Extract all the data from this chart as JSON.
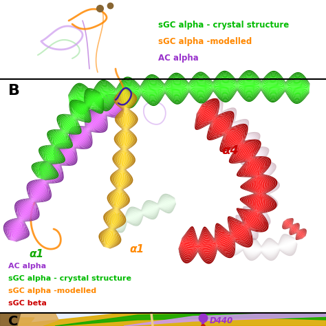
{
  "figure_width": 4.74,
  "figure_height": 4.74,
  "bg_color": "#ffffff",
  "panel_B_label": "B",
  "panel_C_label": "C",
  "top_legend": [
    {
      "text": "sGC alpha - crystal structure",
      "color": "#00bb00"
    },
    {
      "text": "sGC alpha -modelled",
      "color": "#ff8800"
    },
    {
      "text": "AC alpha",
      "color": "#9933cc"
    }
  ],
  "bottom_legend": [
    {
      "text": "AC alpha",
      "color": "#9933cc"
    },
    {
      "text": "sGC alpha - crystal structure",
      "color": "#00bb00"
    },
    {
      "text": "sGC alpha -modelled",
      "color": "#ff8800"
    },
    {
      "text": "sGC beta",
      "color": "#cc0000"
    }
  ],
  "colors": {
    "green": "#11aa00",
    "green_light": "#88dd88",
    "purple": "#9933cc",
    "purple_light": "#cc99ee",
    "orange": "#ff8800",
    "red": "#cc0000",
    "pink": "#ff99bb",
    "pink_light": "#ffccdd",
    "gold": "#ddaa00",
    "brown": "#886633",
    "blue_dark": "#2200bb",
    "white": "#ffffff"
  }
}
